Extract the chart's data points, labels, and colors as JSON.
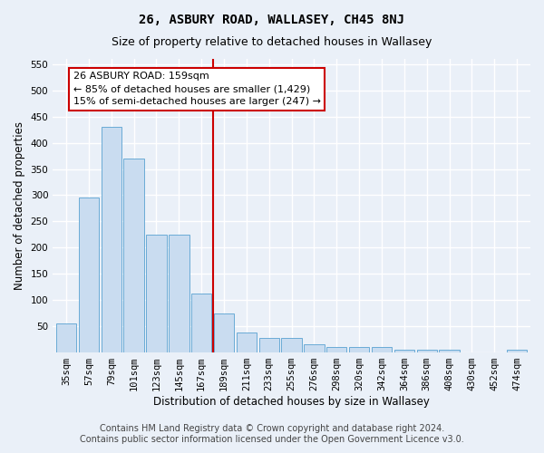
{
  "title": "26, ASBURY ROAD, WALLASEY, CH45 8NJ",
  "subtitle": "Size of property relative to detached houses in Wallasey",
  "xlabel": "Distribution of detached houses by size in Wallasey",
  "ylabel": "Number of detached properties",
  "categories": [
    "35sqm",
    "57sqm",
    "79sqm",
    "101sqm",
    "123sqm",
    "145sqm",
    "167sqm",
    "189sqm",
    "211sqm",
    "233sqm",
    "255sqm",
    "276sqm",
    "298sqm",
    "320sqm",
    "342sqm",
    "364sqm",
    "386sqm",
    "408sqm",
    "430sqm",
    "452sqm",
    "474sqm"
  ],
  "values": [
    55,
    295,
    430,
    370,
    225,
    225,
    113,
    75,
    38,
    27,
    27,
    15,
    10,
    10,
    10,
    5,
    5,
    5,
    0,
    0,
    5
  ],
  "bar_color": "#c9dcf0",
  "bar_edge_color": "#6aabd6",
  "vline_x": 6.5,
  "vline_color": "#cc0000",
  "annotation_text": "26 ASBURY ROAD: 159sqm\n← 85% of detached houses are smaller (1,429)\n15% of semi-detached houses are larger (247) →",
  "annotation_box_color": "#ffffff",
  "annotation_box_edge": "#cc0000",
  "ylim": [
    0,
    560
  ],
  "yticks": [
    0,
    50,
    100,
    150,
    200,
    250,
    300,
    350,
    400,
    450,
    500,
    550
  ],
  "footer_line1": "Contains HM Land Registry data © Crown copyright and database right 2024.",
  "footer_line2": "Contains public sector information licensed under the Open Government Licence v3.0.",
  "bg_color": "#eaf0f8",
  "grid_color": "#ffffff",
  "title_fontsize": 10,
  "subtitle_fontsize": 9,
  "label_fontsize": 8.5,
  "tick_fontsize": 7.5,
  "annotation_fontsize": 8,
  "footer_fontsize": 7
}
